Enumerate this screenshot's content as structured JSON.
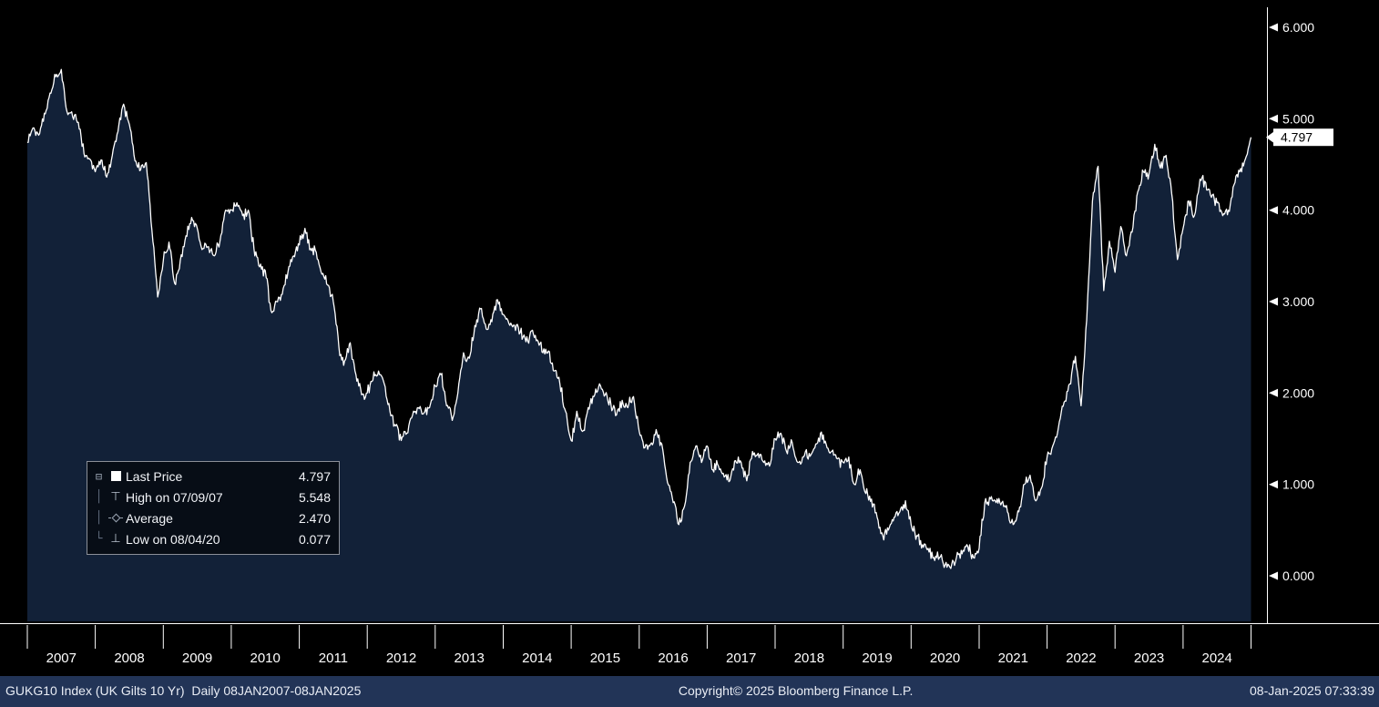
{
  "app": {
    "name": "Bloomberg terminal chart",
    "security": "GUKG10 Index (UK Gilts 10 Yr)"
  },
  "chart_data": {
    "type": "area",
    "title": "GUKG10 Index (UK Gilts 10 Yr) Last Price",
    "x_tick_years": [
      "2007",
      "2008",
      "2009",
      "2010",
      "2011",
      "2012",
      "2013",
      "2014",
      "2015",
      "2016",
      "2017",
      "2018",
      "2019",
      "2020",
      "2021",
      "2022",
      "2023",
      "2024"
    ],
    "y_ticks": [
      "0.000",
      "1.000",
      "2.000",
      "3.000",
      "4.000",
      "5.000",
      "6.000"
    ],
    "xlim": [
      2007.0,
      2025.06
    ],
    "ylim": [
      -0.5,
      6.1
    ],
    "grid": false,
    "legend_position": "overlay-left",
    "background": "#000000",
    "line_color": "#ffffff",
    "fill_color": "#122138",
    "last_price": 4.797,
    "last_price_label": "4.797",
    "high": {
      "date": "07/09/07",
      "value": 5.548
    },
    "average": 2.47,
    "low": {
      "date": "08/04/20",
      "value": 0.077
    },
    "series": [
      {
        "name": "Last Price",
        "start_year": 2007,
        "interval": "monthly",
        "values": [
          4.74,
          4.9,
          4.82,
          5.06,
          5.28,
          5.46,
          5.54,
          5.08,
          5.02,
          4.96,
          4.62,
          4.56,
          4.42,
          4.55,
          4.36,
          4.6,
          4.86,
          5.16,
          4.94,
          4.54,
          4.44,
          4.52,
          3.78,
          3.05,
          3.45,
          3.65,
          3.2,
          3.45,
          3.72,
          3.92,
          3.8,
          3.58,
          3.6,
          3.5,
          3.66,
          4.0,
          4.0,
          4.08,
          3.94,
          4.0,
          3.58,
          3.38,
          3.34,
          2.9,
          3.0,
          3.08,
          3.32,
          3.5,
          3.62,
          3.8,
          3.58,
          3.54,
          3.3,
          3.18,
          3.0,
          2.5,
          2.35,
          2.55,
          2.2,
          1.98,
          2.0,
          2.14,
          2.24,
          2.1,
          1.8,
          1.64,
          1.48,
          1.56,
          1.76,
          1.84,
          1.78,
          1.84,
          2.08,
          2.2,
          1.86,
          1.7,
          2.0,
          2.44,
          2.38,
          2.74,
          2.92,
          2.7,
          2.78,
          3.02,
          2.86,
          2.76,
          2.74,
          2.66,
          2.56,
          2.68,
          2.58,
          2.44,
          2.46,
          2.24,
          2.1,
          1.8,
          1.48,
          1.8,
          1.58,
          1.84,
          1.96,
          2.1,
          1.98,
          1.88,
          1.76,
          1.92,
          1.84,
          1.96,
          1.58,
          1.4,
          1.44,
          1.6,
          1.44,
          1.02,
          0.8,
          0.56,
          0.76,
          1.24,
          1.42,
          1.24,
          1.42,
          1.16,
          1.2,
          1.08,
          1.04,
          1.26,
          1.24,
          1.04,
          1.36,
          1.34,
          1.24,
          1.2,
          1.5,
          1.56,
          1.36,
          1.46,
          1.24,
          1.3,
          1.34,
          1.4,
          1.56,
          1.44,
          1.36,
          1.28,
          1.24,
          1.3,
          1.0,
          1.16,
          0.9,
          0.84,
          0.64,
          0.44,
          0.5,
          0.64,
          0.7,
          0.82,
          0.56,
          0.44,
          0.34,
          0.3,
          0.2,
          0.2,
          0.12,
          0.08,
          0.2,
          0.24,
          0.32,
          0.2,
          0.3,
          0.8,
          0.84,
          0.8,
          0.8,
          0.7,
          0.56,
          0.7,
          1.0,
          1.1,
          0.82,
          0.96,
          1.3,
          1.42,
          1.62,
          1.9,
          2.1,
          2.4,
          1.86,
          2.8,
          4.1,
          4.48,
          3.12,
          3.66,
          3.32,
          3.82,
          3.5,
          3.76,
          4.2,
          4.42,
          4.4,
          4.72,
          4.46,
          4.6,
          4.18,
          3.46,
          3.8,
          4.1,
          3.94,
          4.34,
          4.3,
          4.14,
          4.08,
          3.94,
          4.0,
          4.28,
          4.42,
          4.56,
          4.797
        ]
      }
    ]
  },
  "legend": {
    "rows": [
      {
        "icon": "square-swatch",
        "label": "Last Price",
        "value": "4.797"
      },
      {
        "icon": "high-marker",
        "label": "High on 07/09/07",
        "value": "5.548"
      },
      {
        "icon": "average-marker",
        "label": "Average",
        "value": "2.470"
      },
      {
        "icon": "low-marker",
        "label": "Low on 08/04/20",
        "value": "0.077"
      }
    ]
  },
  "footer": {
    "left": "GUKG10 Index (UK Gilts 10 Yr)  Daily 08JAN2007-08JAN2025",
    "center": "Copyright© 2025 Bloomberg Finance L.P.",
    "right": "08-Jan-2025 07:33:39"
  }
}
